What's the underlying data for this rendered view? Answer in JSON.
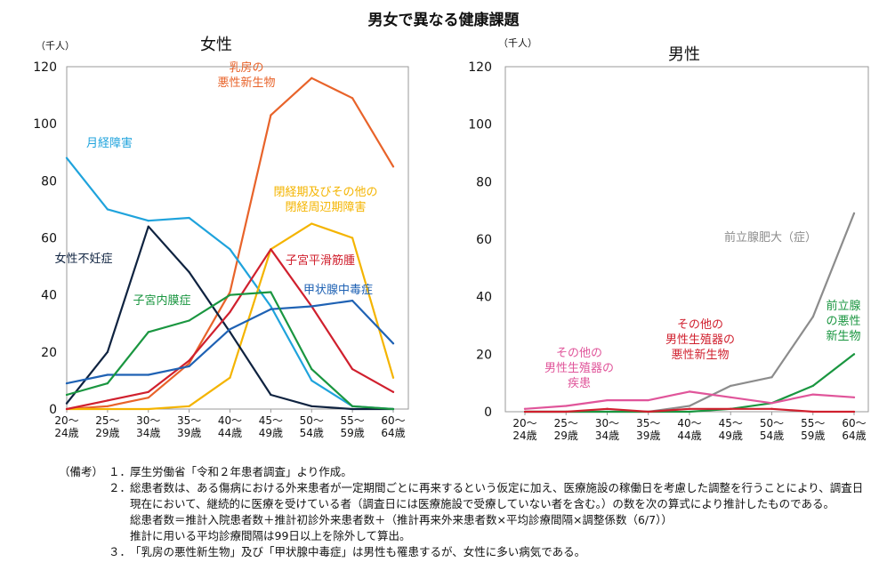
{
  "title": "男女で異なる健康課題",
  "chart_data": [
    {
      "type": "line",
      "title": "女性",
      "unit_label": "（千人）",
      "ylim": [
        0,
        120
      ],
      "yticks": [
        0,
        20,
        40,
        60,
        80,
        100,
        120
      ],
      "categories": [
        [
          "20～",
          "24歳"
        ],
        [
          "25～",
          "29歳"
        ],
        [
          "30～",
          "34歳"
        ],
        [
          "35～",
          "39歳"
        ],
        [
          "40～",
          "44歳"
        ],
        [
          "45～",
          "49歳"
        ],
        [
          "50～",
          "54歳"
        ],
        [
          "55～",
          "59歳"
        ],
        [
          "60～",
          "64歳"
        ]
      ],
      "series": [
        {
          "name": "乳房の悪性新生物",
          "label_lines": [
            "乳房の",
            "悪性新生物"
          ],
          "color": "#e8632a",
          "values": [
            0,
            1,
            4,
            16,
            41,
            103,
            116,
            109,
            85
          ]
        },
        {
          "name": "月経障害",
          "label_lines": [
            "月経障害"
          ],
          "color": "#1fa3dc",
          "values": [
            88,
            70,
            66,
            67,
            56,
            36,
            10,
            1,
            0
          ]
        },
        {
          "name": "閉経期及びその他の閉経周辺期障害",
          "label_lines": [
            "閉経期及びその他の",
            "閉経周辺期障害"
          ],
          "color": "#f4b400",
          "values": [
            0,
            0,
            0,
            1,
            11,
            56,
            65,
            60,
            11
          ]
        },
        {
          "name": "女性不妊症",
          "label_lines": [
            "女性不妊症"
          ],
          "color": "#0f2340",
          "values": [
            2,
            20,
            64,
            48,
            27,
            5,
            1,
            0,
            0
          ]
        },
        {
          "name": "子宮平滑筋腫",
          "label_lines": [
            "子宮平滑筋腫"
          ],
          "color": "#d0202e",
          "values": [
            0,
            3,
            6,
            17,
            34,
            56,
            36,
            14,
            6
          ]
        },
        {
          "name": "甲状腺中毒症",
          "label_lines": [
            "甲状腺中毒症"
          ],
          "color": "#1f62b4",
          "values": [
            9,
            12,
            12,
            15,
            28,
            35,
            36,
            38,
            23
          ]
        },
        {
          "name": "子宮内膜症",
          "label_lines": [
            "子宮内膜症"
          ],
          "color": "#1a9640",
          "values": [
            5,
            9,
            27,
            31,
            40,
            41,
            14,
            1,
            0
          ]
        }
      ]
    },
    {
      "type": "line",
      "title": "男性",
      "unit_label": "（千人）",
      "ylim": [
        0,
        120
      ],
      "yticks": [
        0,
        20,
        40,
        60,
        80,
        100,
        120
      ],
      "categories": [
        [
          "20～",
          "24歳"
        ],
        [
          "25～",
          "29歳"
        ],
        [
          "30～",
          "34歳"
        ],
        [
          "35～",
          "39歳"
        ],
        [
          "40～",
          "44歳"
        ],
        [
          "45～",
          "49歳"
        ],
        [
          "50～",
          "54歳"
        ],
        [
          "55～",
          "59歳"
        ],
        [
          "60～",
          "64歳"
        ]
      ],
      "series": [
        {
          "name": "前立腺肥大（症）",
          "label_lines": [
            "前立腺肥大（症）"
          ],
          "color": "#8c8c8c",
          "values": [
            0,
            0,
            0,
            0,
            2,
            9,
            12,
            33,
            69
          ]
        },
        {
          "name": "前立腺の悪性新生物",
          "label_lines": [
            "前立腺",
            "の悪性",
            "新生物"
          ],
          "color": "#1a9640",
          "values": [
            0,
            0,
            0,
            0,
            0,
            1,
            3,
            9,
            20
          ]
        },
        {
          "name": "その他の男性生殖器の疾患",
          "label_lines": [
            "その他の",
            "男性生殖器の",
            "疾患"
          ],
          "color": "#e0559a",
          "values": [
            1,
            2,
            4,
            4,
            7,
            5,
            3,
            6,
            5
          ]
        },
        {
          "name": "その他の男性生殖器の悪性新生物",
          "label_lines": [
            "その他の",
            "男性生殖器の",
            "悪性新生物"
          ],
          "color": "#d0202e",
          "values": [
            0,
            0,
            1,
            0,
            1,
            1,
            1,
            0,
            0
          ]
        }
      ]
    }
  ],
  "notes": {
    "heading": "（備考）",
    "items": [
      {
        "num": "１．",
        "lines": [
          "厚生労働省「令和２年患者調査」より作成。"
        ]
      },
      {
        "num": "２．",
        "lines": [
          "総患者数は、ある傷病における外来患者が一定期間ごとに再来するという仮定に加え、医療施設の稼働日を考慮した調整を行うことにより、調査日",
          "現在において、継続的に医療を受けている者（調査日には医療施設で受療していない者を含む。）の数を次の算式により推計したものである。",
          "総患者数＝推計入院患者数＋推計初診外来患者数＋（推計再来外来患者数×平均診療間隔×調整係数（6/7））",
          "推計に用いる平均診療間隔は99日以上を除外して算出。"
        ]
      },
      {
        "num": "３．",
        "lines": [
          "「乳房の悪性新生物」及び「甲状腺中毒症」は男性も罹患するが、女性に多い病気である。"
        ]
      }
    ]
  }
}
